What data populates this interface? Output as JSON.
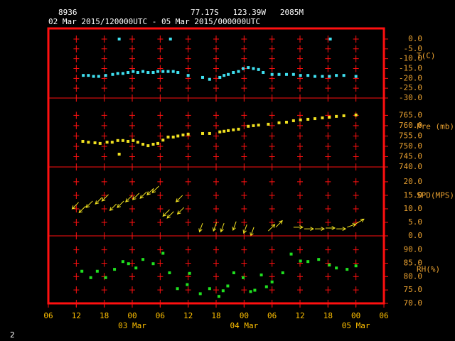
{
  "header": {
    "station": "8936",
    "location": "77.17S   123.39W   2085M",
    "period": "02 Mar 2015/120000UTC - 05 Mar 2015/000000UTC",
    "page": "2"
  },
  "x_axis": {
    "xlim": [
      0,
      72
    ],
    "xticks": [
      {
        "value": 0,
        "label": "06"
      },
      {
        "value": 6,
        "label": "12"
      },
      {
        "value": 12,
        "label": "18"
      },
      {
        "value": 18,
        "label": "00"
      },
      {
        "value": 24,
        "label": "06"
      },
      {
        "value": 30,
        "label": "12"
      },
      {
        "value": 36,
        "label": "18"
      },
      {
        "value": 42,
        "label": "00"
      },
      {
        "value": 48,
        "label": "06"
      },
      {
        "value": 54,
        "label": "12"
      },
      {
        "value": 60,
        "label": "18"
      },
      {
        "value": 66,
        "label": "00"
      },
      {
        "value": 72,
        "label": "06"
      }
    ],
    "date_ticks": [
      {
        "value": 18,
        "label": "03 Mar"
      },
      {
        "value": 42,
        "label": "04 Mar"
      },
      {
        "value": 66,
        "label": "05 Mar"
      }
    ]
  },
  "chart_data": [
    {
      "type": "scatter",
      "ylabel": "T(C)",
      "color": "#40e0f0",
      "ylim": [
        -30,
        5.4
      ],
      "yticks": [
        {
          "value": 0,
          "label": "0.0"
        },
        {
          "value": -5,
          "label": "-5.0"
        },
        {
          "value": -10,
          "label": "-10.0"
        },
        {
          "value": -15,
          "label": "-15.0"
        },
        {
          "value": -20,
          "label": "-20.0"
        },
        {
          "value": -25,
          "label": "-25.0"
        },
        {
          "value": -30,
          "label": "-30.0"
        }
      ],
      "x": [
        7.5,
        8.6,
        9.7,
        10.8,
        12.3,
        13.8,
        14.9,
        16,
        17.1,
        18.2,
        19.2,
        20.3,
        21.4,
        22.5,
        23.5,
        24.6,
        25.7,
        26.8,
        27.8,
        30,
        33.1,
        34.6,
        36.8,
        37.7,
        38.6,
        39.7,
        40.8,
        41.8,
        42.9,
        44,
        45.1,
        46.1,
        48,
        49.5,
        51.1,
        52.6,
        54.1,
        55.7,
        57.2,
        58.8,
        60.3,
        61.8,
        63.4,
        66,
        15.2,
        26.2,
        60.5
      ],
      "values": [
        -18.5,
        -18.5,
        -19,
        -19,
        -18.5,
        -18,
        -17.5,
        -17.5,
        -17,
        -16.5,
        -17,
        -16.5,
        -17,
        -17,
        -16.5,
        -16.5,
        -16.5,
        -16.5,
        -17,
        -18.5,
        -19.5,
        -20.5,
        -19.5,
        -18.5,
        -18,
        -17,
        -16.5,
        -15,
        -14.5,
        -15,
        -15.5,
        -17,
        -18,
        -18,
        -18,
        -18,
        -18.5,
        -18.5,
        -19,
        -19,
        -19,
        -18.5,
        -18.5,
        -19,
        0,
        0,
        0
      ]
    },
    {
      "type": "scatter",
      "ylabel": "Pre (mb)",
      "color": "#f0e020",
      "ylim": [
        740,
        773.4
      ],
      "yticks": [
        {
          "value": 740,
          "label": "740.0"
        },
        {
          "value": 745,
          "label": "745.0"
        },
        {
          "value": 750,
          "label": "750.0"
        },
        {
          "value": 755,
          "label": "755.0"
        },
        {
          "value": 760,
          "label": "760.0"
        },
        {
          "value": 765,
          "label": "765.0"
        }
      ],
      "x": [
        7.4,
        8.6,
        10,
        11.1,
        12.6,
        13.7,
        14.9,
        16,
        17.1,
        18.2,
        19.2,
        20.3,
        21.4,
        22.5,
        23.5,
        24.6,
        25.7,
        26.8,
        27.8,
        28.9,
        30,
        33.1,
        34.6,
        36.8,
        37.7,
        38.6,
        39.7,
        40.8,
        42.9,
        44,
        45.1,
        47.2,
        49.5,
        51.1,
        52.6,
        54.1,
        55.7,
        57.2,
        58.8,
        60.3,
        61.8,
        63.4,
        66,
        15.2
      ],
      "values": [
        752.4,
        752,
        751.7,
        751.4,
        752,
        752,
        752.8,
        752.8,
        752.4,
        752.8,
        752,
        751,
        750.3,
        751,
        751.4,
        753,
        754.5,
        754.5,
        755,
        755.5,
        755.9,
        756.2,
        756.2,
        757,
        757.3,
        757.6,
        758,
        758.3,
        759.7,
        760,
        760.3,
        760.7,
        761.4,
        761.7,
        762.4,
        762.8,
        763.1,
        763.4,
        763.8,
        764.1,
        764.5,
        764.8,
        765.2,
        746.2
      ]
    },
    {
      "type": "vector",
      "ylabel": "SPD(MPS)",
      "color": "#f0e020",
      "ylim": [
        0,
        25.5
      ],
      "yticks": [
        {
          "value": 0,
          "label": "0.0"
        },
        {
          "value": 5,
          "label": "5.0"
        },
        {
          "value": 10,
          "label": "10.0"
        },
        {
          "value": 15,
          "label": "15.0"
        },
        {
          "value": 20,
          "label": "20.0"
        }
      ],
      "x": [
        6.5,
        8,
        9.5,
        11.5,
        12.9,
        14.6,
        16.2,
        18,
        19.5,
        21.1,
        22.6,
        23.7,
        26,
        26.9,
        29.1,
        28.8,
        33.1,
        36.1,
        37.7,
        40.3,
        42.6,
        44.1,
        47.2,
        48.8,
        52.6,
        54.9,
        57.2,
        59.5,
        61.8,
        64.1,
        66
      ],
      "values": [
        12.4,
        11,
        12.9,
        14.2,
        15.3,
        11.8,
        12.9,
        15,
        15.8,
        16.3,
        17.6,
        18.4,
        9.7,
        9,
        10.5,
        15,
        4.7,
        5,
        4.7,
        5.3,
        4.2,
        3.2,
        1.8,
        3.2,
        3.2,
        2.6,
        2.6,
        2.9,
        2.6,
        3.2,
        4.5
      ],
      "direction": [
        225,
        225,
        225,
        225,
        225,
        225,
        225,
        225,
        225,
        225,
        225,
        225,
        225,
        225,
        225,
        225,
        200,
        200,
        200,
        200,
        200,
        200,
        45,
        45,
        90,
        90,
        90,
        90,
        90,
        70,
        60
      ]
    },
    {
      "type": "scatter",
      "ylabel": "RH(%)",
      "color": "#20e020",
      "ylim": [
        70,
        95.2
      ],
      "yticks": [
        {
          "value": 70,
          "label": "70.0"
        },
        {
          "value": 75,
          "label": "75.0"
        },
        {
          "value": 80,
          "label": "80.0"
        },
        {
          "value": 85,
          "label": "85.0"
        },
        {
          "value": 90,
          "label": "90.0"
        }
      ],
      "x": [
        7.2,
        9.1,
        10.5,
        12.3,
        14.2,
        16,
        17.2,
        18.8,
        20.3,
        22.5,
        24.6,
        26,
        27.7,
        29.8,
        30.3,
        32.6,
        34.6,
        36.6,
        37.5,
        38.5,
        39.8,
        41.8,
        43.4,
        44.3,
        45.7,
        46.8,
        48,
        50.3,
        52.1,
        54.1,
        55.7,
        58,
        60.3,
        61.8,
        64.1,
        66
      ],
      "values": [
        82,
        79.6,
        82,
        79.6,
        82.7,
        85.6,
        84.8,
        83.2,
        86.4,
        84.8,
        88.7,
        81.4,
        75.5,
        77,
        81.2,
        73.6,
        75.5,
        72.6,
        74.7,
        76.5,
        81.4,
        79.6,
        74.4,
        74.9,
        80.6,
        76.2,
        78,
        81.4,
        88.4,
        85.8,
        85.6,
        86.4,
        84.3,
        83.2,
        82.7,
        84
      ]
    }
  ]
}
